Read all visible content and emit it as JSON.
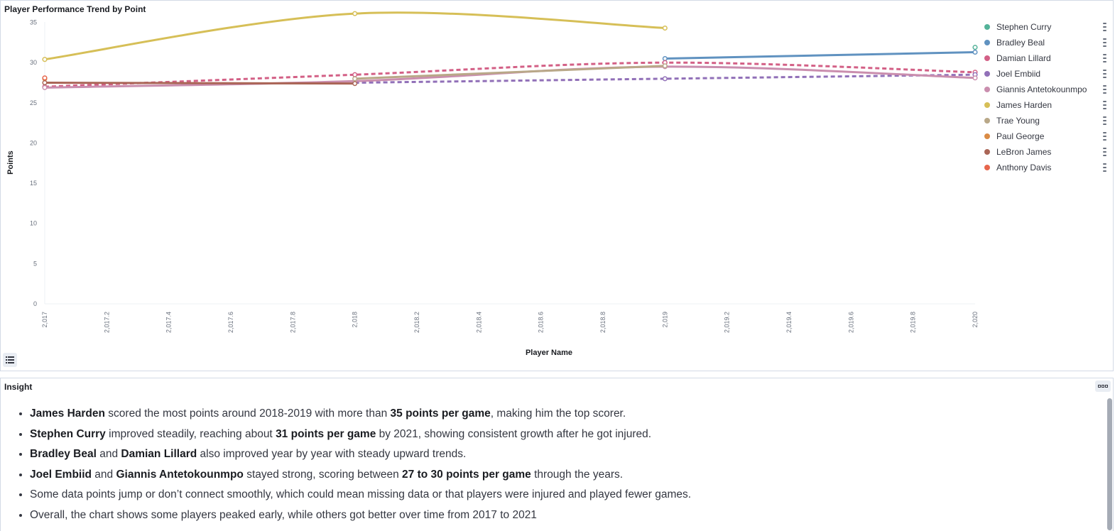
{
  "chart_panel": {
    "title": "Player Performance Trend by Point"
  },
  "chart_data": {
    "type": "line",
    "title": "Player Performance Trend by Point",
    "xlabel": "Player Name",
    "ylabel": "Points",
    "xlim": [
      2017,
      2020
    ],
    "ylim": [
      0,
      36
    ],
    "x_ticks": [
      "2,017",
      "2,017.2",
      "2,017.4",
      "2,017.6",
      "2,017.8",
      "2,018",
      "2,018.2",
      "2,018.4",
      "2,018.6",
      "2,018.8",
      "2,019",
      "2,019.2",
      "2,019.4",
      "2,019.6",
      "2,019.8",
      "2,020"
    ],
    "y_ticks": [
      "0",
      "5",
      "10",
      "15",
      "20",
      "25",
      "30",
      "35"
    ],
    "grid": false,
    "legend_position": "right",
    "series": [
      {
        "name": "Stephen Curry",
        "color": "#54b399",
        "x": [
          2020
        ],
        "y": [
          31.9
        ],
        "dashed": false
      },
      {
        "name": "Bradley Beal",
        "color": "#6092c0",
        "x": [
          2019,
          2020
        ],
        "y": [
          30.5,
          31.3
        ],
        "dashed": false
      },
      {
        "name": "Damian Lillard",
        "color": "#d36086",
        "x": [
          2017,
          2018,
          2019,
          2020
        ],
        "y": [
          27.0,
          28.5,
          30.0,
          28.8
        ],
        "dashed": true
      },
      {
        "name": "Joel Embiid",
        "color": "#9170b8",
        "x": [
          2018,
          2019,
          2020
        ],
        "y": [
          27.5,
          28.0,
          28.5
        ],
        "dashed": true
      },
      {
        "name": "Giannis Antetokounmpo",
        "color": "#ca8eae",
        "x": [
          2017,
          2018,
          2019,
          2020
        ],
        "y": [
          26.9,
          27.7,
          29.5,
          28.1
        ],
        "dashed": false
      },
      {
        "name": "James Harden",
        "color": "#d6bf57",
        "x": [
          2017,
          2018,
          2019
        ],
        "y": [
          30.4,
          36.1,
          34.3
        ],
        "dashed": false
      },
      {
        "name": "Trae Young",
        "color": "#b9a888",
        "x": [
          2018,
          2019
        ],
        "y": [
          28.0,
          29.6
        ],
        "dashed": false
      },
      {
        "name": "Paul George",
        "color": "#da8b45",
        "x": [
          2017
        ],
        "y": [
          28.0
        ],
        "dashed": false
      },
      {
        "name": "LeBron James",
        "color": "#aa6556",
        "x": [
          2017,
          2018
        ],
        "y": [
          27.5,
          27.4
        ],
        "dashed": false
      },
      {
        "name": "Anthony Davis",
        "color": "#e7664c",
        "x": [
          2017
        ],
        "y": [
          28.1
        ],
        "dashed": false
      }
    ]
  },
  "insight_panel": {
    "title": "Insight",
    "items": [
      {
        "parts": [
          {
            "t": "James Harden",
            "b": true
          },
          {
            "t": " scored the most points around 2018-2019 with more than ",
            "b": false
          },
          {
            "t": "35 points per game",
            "b": true
          },
          {
            "t": ", making him the top scorer.",
            "b": false
          }
        ]
      },
      {
        "parts": [
          {
            "t": "Stephen Curry",
            "b": true
          },
          {
            "t": " improved steadily, reaching about ",
            "b": false
          },
          {
            "t": "31 points per game",
            "b": true
          },
          {
            "t": " by 2021, showing consistent growth after he got injured.",
            "b": false
          }
        ]
      },
      {
        "parts": [
          {
            "t": "Bradley Beal",
            "b": true
          },
          {
            "t": " and ",
            "b": false
          },
          {
            "t": "Damian Lillard",
            "b": true
          },
          {
            "t": " also improved year by year with steady upward trends.",
            "b": false
          }
        ]
      },
      {
        "parts": [
          {
            "t": "Joel Embiid",
            "b": true
          },
          {
            "t": " and ",
            "b": false
          },
          {
            "t": "Giannis Antetokounmpo",
            "b": true
          },
          {
            "t": " stayed strong, scoring between ",
            "b": false
          },
          {
            "t": "27 to 30 points per game",
            "b": true
          },
          {
            "t": " through the years.",
            "b": false
          }
        ]
      },
      {
        "parts": [
          {
            "t": "Some data points jump or don’t connect smoothly, which could mean missing data or that players were injured and played fewer games.",
            "b": false
          }
        ]
      },
      {
        "parts": [
          {
            "t": "Overall, the chart shows some players peaked early, while others got better over time from 2017 to 2021",
            "b": false
          }
        ]
      }
    ]
  }
}
